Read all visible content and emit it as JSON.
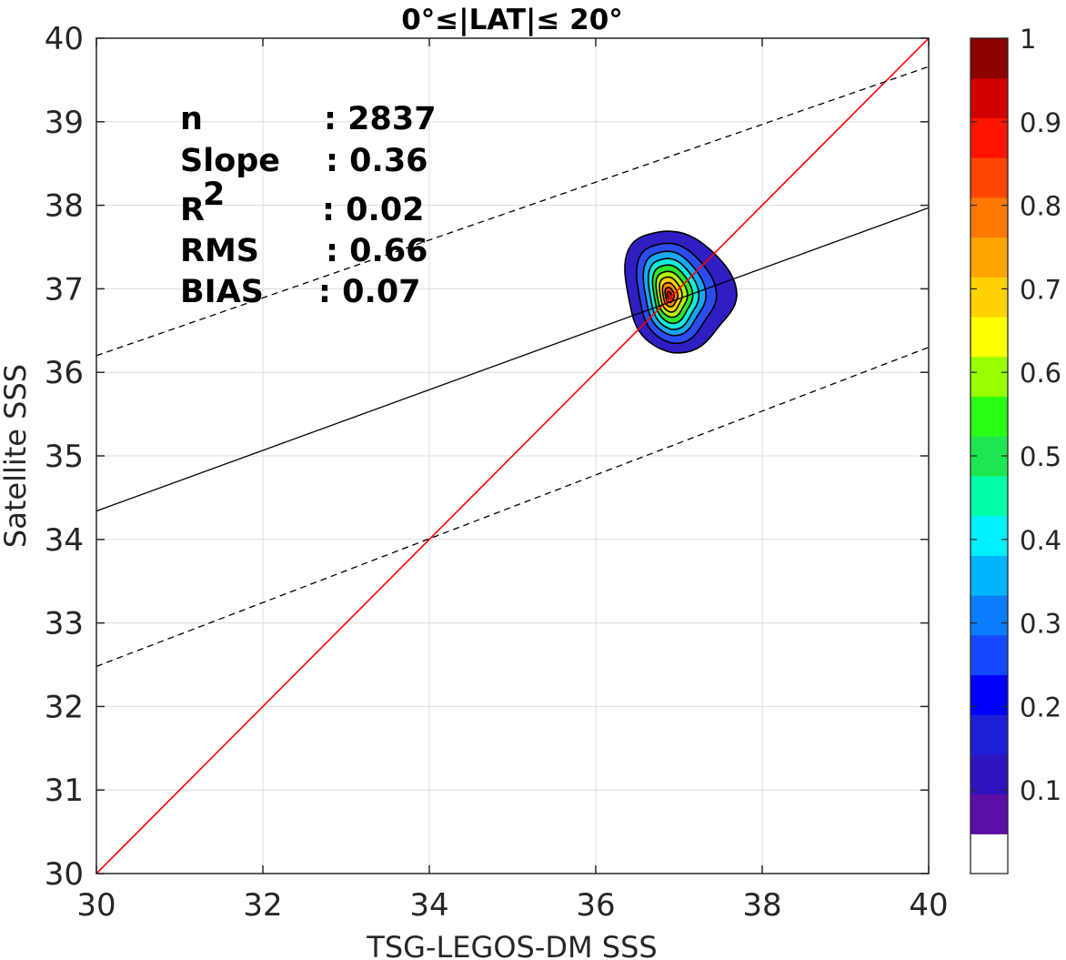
{
  "chart_data": {
    "type": "contour",
    "title": "0°≤|LAT|≤ 20°",
    "xlabel": "TSG-LEGOS-DM SSS",
    "ylabel": "Satellite SSS",
    "xlim": [
      30,
      40
    ],
    "ylim": [
      30,
      40
    ],
    "xticks": [
      30,
      32,
      34,
      36,
      38,
      40
    ],
    "yticks": [
      30,
      31,
      32,
      33,
      34,
      35,
      36,
      37,
      38,
      39,
      40
    ],
    "grid": true,
    "stats": [
      {
        "label": "n",
        "value": ": 2837"
      },
      {
        "label": "Slope",
        "value": ": 0.36"
      },
      {
        "label": "R",
        "sup": "2",
        "value": ": 0.02"
      },
      {
        "label": "RMS",
        "value": ": 0.66"
      },
      {
        "label": "BIAS",
        "value": ": 0.07"
      }
    ],
    "lines": [
      {
        "role": "one-to-one",
        "color": "#ff0000",
        "dash": "solid",
        "points": [
          [
            30,
            30
          ],
          [
            40,
            40
          ]
        ]
      },
      {
        "role": "regression",
        "color": "#000000",
        "dash": "solid",
        "points": [
          [
            30,
            34.34
          ],
          [
            40,
            37.97
          ]
        ]
      },
      {
        "role": "upper-bound",
        "color": "#000000",
        "dash": "dashed",
        "points": [
          [
            30,
            36.2
          ],
          [
            40,
            39.66
          ]
        ]
      },
      {
        "role": "lower-bound",
        "color": "#000000",
        "dash": "dashed",
        "points": [
          [
            30,
            32.48
          ],
          [
            40,
            36.3
          ]
        ]
      }
    ],
    "density_center": {
      "x": 36.88,
      "y": 36.92
    },
    "contour_levels": [
      {
        "level": 0.05,
        "color": "#2f1fc3",
        "rx": [
          0.52,
          0.77
        ],
        "ry": [
          0.66,
          0.8
        ]
      },
      {
        "level": 0.15,
        "color": "#2b4cf0",
        "rx": [
          0.38,
          0.54
        ],
        "ry": [
          0.55,
          0.65
        ]
      },
      {
        "level": 0.25,
        "color": "#18a7f5",
        "rx": [
          0.3,
          0.42
        ],
        "ry": [
          0.46,
          0.55
        ]
      },
      {
        "level": 0.35,
        "color": "#10ecd8",
        "rx": [
          0.24,
          0.34
        ],
        "ry": [
          0.39,
          0.46
        ]
      },
      {
        "level": 0.45,
        "color": "#2fe62f",
        "rx": [
          0.19,
          0.27
        ],
        "ry": [
          0.32,
          0.38
        ]
      },
      {
        "level": 0.55,
        "color": "#b6f010",
        "rx": [
          0.15,
          0.21
        ],
        "ry": [
          0.25,
          0.3
        ]
      },
      {
        "level": 0.65,
        "color": "#ffd000",
        "rx": [
          0.11,
          0.15
        ],
        "ry": [
          0.19,
          0.23
        ]
      },
      {
        "level": 0.75,
        "color": "#ff8c00",
        "rx": [
          0.075,
          0.1
        ],
        "ry": [
          0.13,
          0.16
        ]
      },
      {
        "level": 0.85,
        "color": "#ff3a00",
        "rx": [
          0.045,
          0.06
        ],
        "ry": [
          0.08,
          0.1
        ]
      },
      {
        "level": 0.95,
        "color": "#c80000",
        "rx": [
          0.02,
          0.03
        ],
        "ry": [
          0.04,
          0.05
        ]
      }
    ],
    "colorbar": {
      "ticks": [
        0.1,
        0.2,
        0.3,
        0.4,
        0.5,
        0.6,
        0.7,
        0.8,
        0.9,
        1
      ],
      "tick_labels": [
        "0.1",
        "0.2",
        "0.3",
        "0.4",
        "0.5",
        "0.6",
        "0.7",
        "0.8",
        "0.9",
        "1"
      ],
      "colors": [
        "#ffffff",
        "#5a0fa5",
        "#2e14bd",
        "#1e1ed8",
        "#0000ff",
        "#1448ff",
        "#0a7cff",
        "#00b4ff",
        "#00f0ff",
        "#00ffa8",
        "#1ee650",
        "#28ff14",
        "#96ff00",
        "#ffff00",
        "#ffd200",
        "#ffa500",
        "#ff7800",
        "#ff4600",
        "#ff1400",
        "#d20000",
        "#8c0000"
      ]
    }
  }
}
